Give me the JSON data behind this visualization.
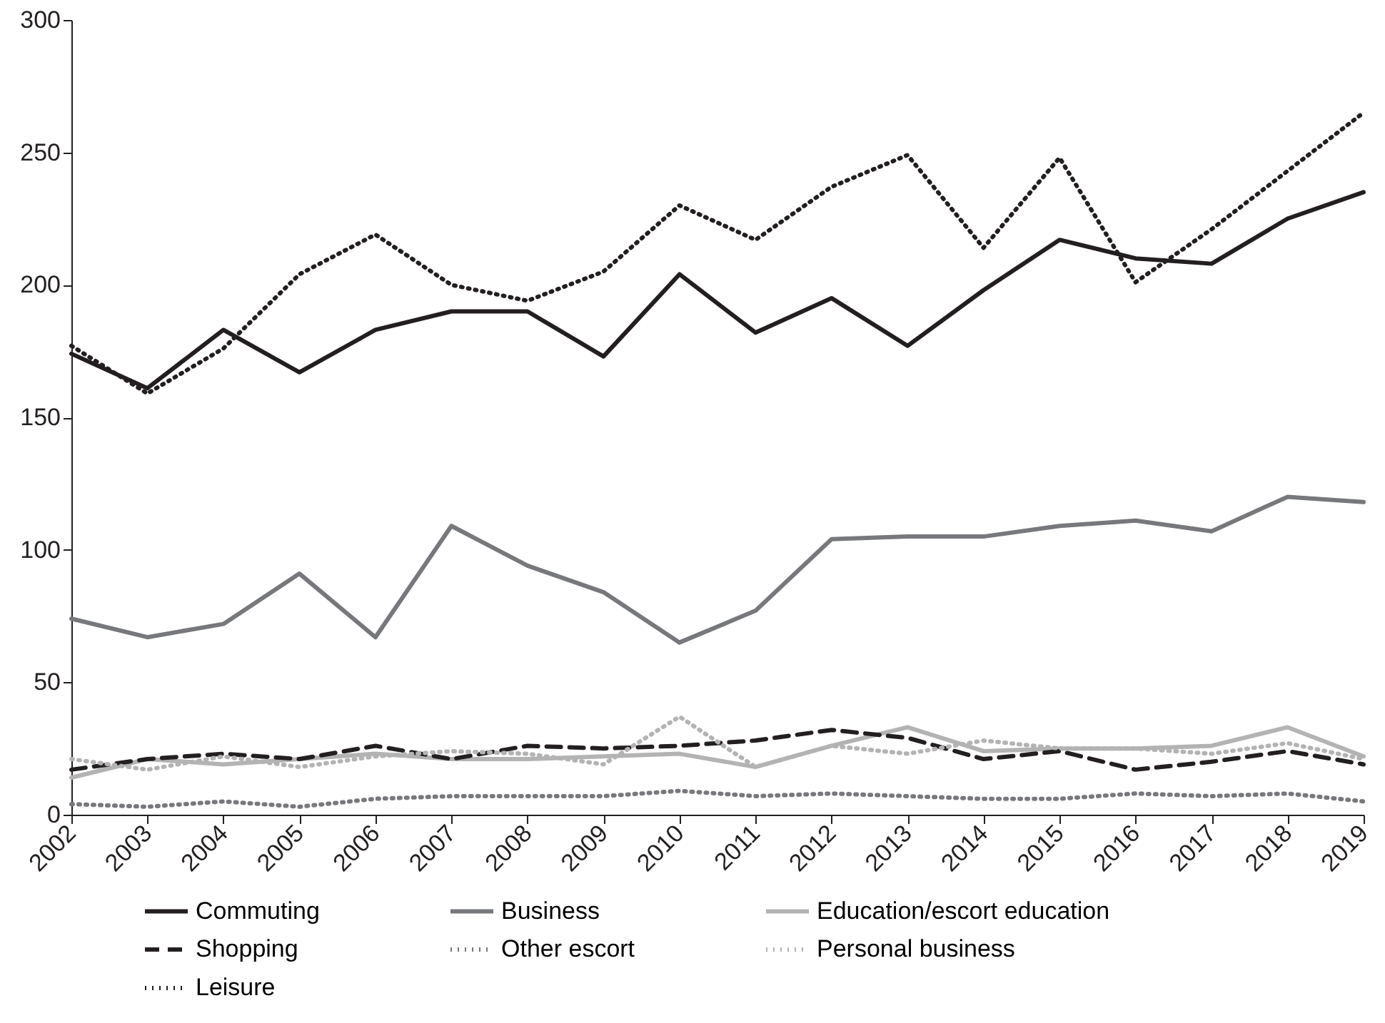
{
  "chart_data": {
    "type": "line",
    "categories": [
      "2002",
      "2003",
      "2004",
      "2005",
      "2006",
      "2007",
      "2008",
      "2009",
      "2010",
      "2011",
      "2012",
      "2013",
      "2014",
      "2015",
      "2016",
      "2017",
      "2018",
      "2019"
    ],
    "ylim": [
      0,
      300
    ],
    "yticks": [
      0,
      50,
      100,
      150,
      200,
      250,
      300
    ],
    "grid": false,
    "legend": "bottom",
    "marker": "none",
    "series": [
      {
        "name": "Commuting",
        "color": "#231f20",
        "line_style": "solid",
        "values": [
          174,
          161,
          183,
          167,
          183,
          190,
          190,
          173,
          204,
          182,
          195,
          177,
          198,
          217,
          210,
          208,
          225,
          235
        ]
      },
      {
        "name": "Business",
        "color": "#77787b",
        "line_style": "solid",
        "values": [
          74,
          67,
          72,
          91,
          67,
          109,
          94,
          84,
          65,
          77,
          104,
          105,
          105,
          109,
          111,
          107,
          120,
          118
        ]
      },
      {
        "name": "Education/escort education",
        "color": "#b3b3b3",
        "line_style": "solid",
        "values": [
          14,
          21,
          19,
          21,
          23,
          21,
          21,
          22,
          23,
          18,
          26,
          33,
          24,
          25,
          25,
          26,
          33,
          22
        ]
      },
      {
        "name": "Shopping",
        "color": "#231f20",
        "line_style": "dashed",
        "values": [
          17,
          21,
          23,
          21,
          26,
          21,
          26,
          25,
          26,
          28,
          32,
          29,
          21,
          24,
          17,
          20,
          24,
          19
        ]
      },
      {
        "name": "Other escort",
        "color": "#77787b",
        "line_style": "dotted",
        "values": [
          4,
          3,
          5,
          3,
          6,
          7,
          7,
          7,
          9,
          7,
          8,
          7,
          6,
          6,
          8,
          7,
          8,
          5
        ]
      },
      {
        "name": "Personal business",
        "color": "#b3b3b3",
        "line_style": "dotted",
        "values": [
          21,
          17,
          22,
          18,
          22,
          24,
          23,
          19,
          37,
          18,
          26,
          23,
          28,
          25,
          25,
          23,
          27,
          21
        ]
      },
      {
        "name": "Leisure",
        "color": "#231f20",
        "line_style": "dotted",
        "values": [
          177,
          159,
          176,
          204,
          219,
          200,
          194,
          205,
          230,
          217,
          237,
          249,
          214,
          248,
          201,
          221,
          243,
          265
        ]
      }
    ]
  }
}
